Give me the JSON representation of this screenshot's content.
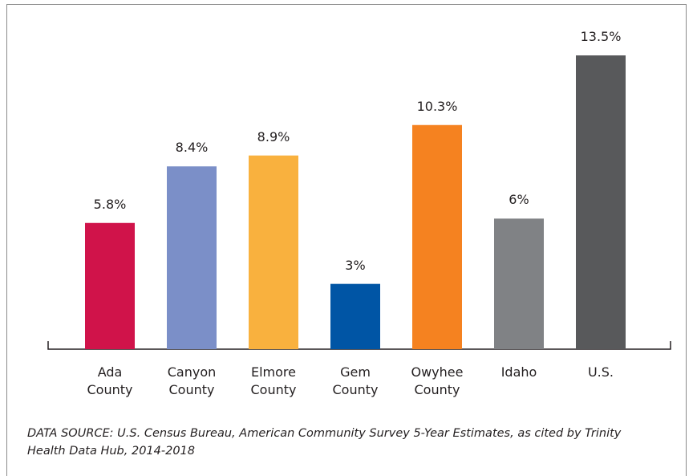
{
  "chart_data": {
    "type": "bar",
    "categories": [
      "Ada County",
      "Canyon County",
      "Elmore County",
      "Gem County",
      "Owyhee County",
      "Idaho",
      "U.S."
    ],
    "values": [
      5.8,
      8.4,
      8.9,
      3,
      10.3,
      6,
      13.5
    ],
    "value_labels": [
      "5.8%",
      "8.4%",
      "8.9%",
      "3%",
      "10.3%",
      "6%",
      "13.5%"
    ],
    "colors": [
      "#d0134a",
      "#7b8fc8",
      "#f9b13e",
      "#0055a5",
      "#f58220",
      "#808285",
      "#58595b"
    ],
    "source": "DATA SOURCE: U.S. Census Bureau, American Community Survey 5-Year Estimates, as cited by Trinity Health Data Hub, 2014-2018"
  }
}
